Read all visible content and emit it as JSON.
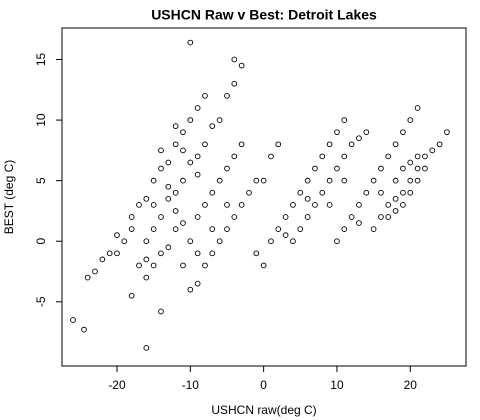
{
  "chart_data": {
    "type": "scatter",
    "title": "USHCN Raw v Best: Detroit Lakes",
    "x_label": "USHCN raw(deg C)",
    "y_label": "BEST (deg C)",
    "color": "#000000",
    "xlim": [
      -27.5,
      27.6
    ],
    "ylim": [
      -10.3,
      17.6
    ],
    "xticks": [
      -20,
      -10,
      0,
      10,
      20
    ],
    "yticks": [
      -5,
      0,
      5,
      10,
      15
    ],
    "x": [
      -24,
      -23,
      -22,
      -21,
      -20,
      -19,
      -18,
      -17,
      -16,
      -15,
      -14,
      -13,
      -12,
      -11,
      -10,
      -9,
      -8,
      -13,
      -15,
      -18,
      -20,
      -11,
      -12,
      -14,
      -18,
      -17,
      -16,
      -15,
      -14,
      -13,
      -12,
      -11,
      -10,
      -9,
      -8,
      -7,
      -6,
      -5,
      -4,
      -3,
      -16,
      -12,
      -9,
      -16,
      -15,
      -14,
      -13,
      -12,
      -11,
      -10,
      -9,
      -8,
      -7,
      -6,
      -5,
      -4,
      -3,
      -11,
      -9,
      -10,
      -9,
      -8,
      -7,
      -6,
      -5,
      -4,
      -3,
      -2,
      -1,
      0,
      1,
      2,
      -7,
      -5,
      -1,
      0,
      1,
      2,
      3,
      4,
      5,
      6,
      7,
      8,
      9,
      10,
      11,
      3,
      6,
      4,
      5,
      6,
      7,
      8,
      9,
      10,
      11,
      12,
      13,
      14,
      9,
      11,
      10,
      11,
      12,
      13,
      14,
      15,
      16,
      17,
      18,
      19,
      20,
      21,
      13,
      16,
      15,
      16,
      17,
      18,
      19,
      20,
      21,
      22,
      23,
      24,
      25,
      17,
      18,
      19,
      20,
      21,
      22,
      18,
      19,
      20,
      21,
      -26,
      -24.5,
      -16,
      -14,
      -10,
      -4
    ],
    "values": [
      -3,
      -2.5,
      -1.5,
      -1,
      0.5,
      0,
      2,
      3,
      3.5,
      5,
      6,
      6.5,
      8,
      9,
      10,
      11,
      12,
      4.5,
      3,
      1,
      -1,
      7.5,
      9.5,
      7.5,
      -4.5,
      -2,
      0,
      1,
      2,
      3.5,
      4,
      5,
      6.5,
      7,
      8,
      9.5,
      10,
      12,
      13,
      14.5,
      -1.5,
      2.5,
      5.5,
      -3,
      -2,
      -1,
      -0.5,
      1,
      1.5,
      0,
      2,
      3,
      4,
      5,
      6,
      7,
      8,
      -2,
      -1,
      -4,
      -3.5,
      -2,
      -1,
      0,
      1,
      2,
      3,
      4,
      5,
      5,
      7,
      8,
      1,
      3,
      -1,
      -2,
      0,
      1,
      2,
      3,
      4,
      5,
      6,
      7,
      8,
      9,
      10,
      0.5,
      3.5,
      0,
      1,
      2,
      3,
      4,
      5,
      6,
      7,
      8,
      8.5,
      9,
      3,
      5,
      0,
      1,
      2,
      3,
      4,
      5,
      6,
      7,
      8,
      9,
      10,
      11,
      1.5,
      4,
      1,
      2,
      3,
      3.5,
      4,
      5,
      6,
      7,
      7.5,
      8,
      9,
      2,
      2.5,
      3,
      4,
      5,
      6,
      5,
      6,
      6.5,
      7,
      -6.5,
      -7.3,
      -8.8,
      -5.8,
      16.4,
      15
    ]
  }
}
